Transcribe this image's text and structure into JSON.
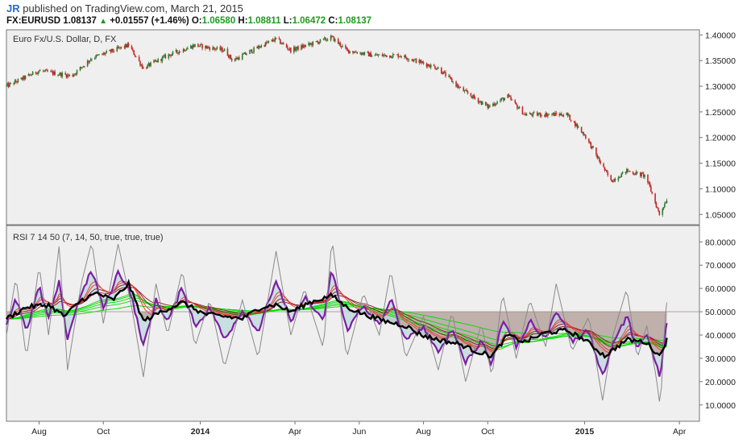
{
  "header": {
    "author": "JR",
    "published": "published on TradingView.com, March 21, 2015",
    "symbol": "FX:EURUSD",
    "last": "1.08137",
    "change": "+0.01557 (+1.46%)",
    "o_label": "O:",
    "o": "1.06580",
    "h_label": "H:",
    "h": "1.08811",
    "l_label": "L:",
    "l": "1.06472",
    "c_label": "C:",
    "c": "1.08137"
  },
  "colors": {
    "pane_bg": "#efefef",
    "up": "#2e7d32",
    "down": "#c62828",
    "rsi_fast": "#8a8a8a",
    "rsi_main": "#000000",
    "rsi_purple": "#7b1fa2",
    "red_ma": "#e53935",
    "green_ma": "#00dd00",
    "fill_light": "#bcd8dc",
    "band_fill": "#b9a8a4"
  },
  "chart_data": [
    {
      "type": "candlestick",
      "title": "Euro Fx/U.S. Dollar, D, FX",
      "ylim": [
        1.03,
        1.41
      ],
      "y_ticks": [
        "1.40000",
        "1.35000",
        "1.30000",
        "1.25000",
        "1.20000",
        "1.15000",
        "1.10000",
        "1.05000"
      ],
      "y_tick_values": [
        1.4,
        1.35,
        1.3,
        1.25,
        1.2,
        1.15,
        1.1,
        1.05
      ],
      "x_tick_labels": [
        "Aug",
        "Oct",
        "2014",
        "Apr",
        "Jun",
        "Aug",
        "Oct",
        "2015",
        "Apr"
      ],
      "close_path": [
        [
          "2013-07-01",
          1.3
        ],
        [
          "2013-08-01",
          1.33
        ],
        [
          "2013-09-01",
          1.32
        ],
        [
          "2013-09-20",
          1.355
        ],
        [
          "2013-10-25",
          1.38
        ],
        [
          "2013-11-08",
          1.335
        ],
        [
          "2013-12-01",
          1.36
        ],
        [
          "2013-12-27",
          1.38
        ],
        [
          "2014-01-24",
          1.37
        ],
        [
          "2014-02-01",
          1.35
        ],
        [
          "2014-03-01",
          1.38
        ],
        [
          "2014-03-14",
          1.392
        ],
        [
          "2014-03-28",
          1.37
        ],
        [
          "2014-05-06",
          1.395
        ],
        [
          "2014-05-20",
          1.37
        ],
        [
          "2014-06-15",
          1.36
        ],
        [
          "2014-07-10",
          1.36
        ],
        [
          "2014-08-15",
          1.335
        ],
        [
          "2014-09-05",
          1.295
        ],
        [
          "2014-10-01",
          1.26
        ],
        [
          "2014-10-20",
          1.28
        ],
        [
          "2014-11-05",
          1.245
        ],
        [
          "2014-12-15",
          1.245
        ],
        [
          "2015-01-01",
          1.205
        ],
        [
          "2015-01-26",
          1.115
        ],
        [
          "2015-02-10",
          1.135
        ],
        [
          "2015-02-28",
          1.125
        ],
        [
          "2015-03-13",
          1.05
        ],
        [
          "2015-03-20",
          1.08
        ]
      ]
    },
    {
      "type": "line",
      "title": "RSI 7 14 50 (7, 14, 50, true, true, true)",
      "ylim": [
        3,
        87
      ],
      "y_ticks": [
        "80.0000",
        "70.0000",
        "60.0000",
        "50.0000",
        "40.0000",
        "30.0000",
        "20.0000",
        "10.0000"
      ],
      "y_tick_values": [
        80,
        70,
        60,
        50,
        40,
        30,
        20,
        10
      ],
      "midline": 50,
      "series": [
        {
          "role": "rsi_main",
          "points": [
            [
              "2013-07-01",
              47
            ],
            [
              "2013-07-20",
              52
            ],
            [
              "2013-08-10",
              53
            ],
            [
              "2013-08-25",
              48
            ],
            [
              "2013-09-10",
              55
            ],
            [
              "2013-09-25",
              58
            ],
            [
              "2013-10-10",
              55
            ],
            [
              "2013-10-25",
              62
            ],
            [
              "2013-11-08",
              46
            ],
            [
              "2013-11-25",
              50
            ],
            [
              "2013-12-15",
              54
            ],
            [
              "2014-01-05",
              49
            ],
            [
              "2014-01-24",
              48
            ],
            [
              "2014-02-10",
              47
            ],
            [
              "2014-02-28",
              52
            ],
            [
              "2014-03-14",
              53
            ],
            [
              "2014-03-28",
              50
            ],
            [
              "2014-04-15",
              54
            ],
            [
              "2014-05-06",
              57
            ],
            [
              "2014-05-20",
              52
            ],
            [
              "2014-06-05",
              49
            ],
            [
              "2014-06-25",
              46
            ],
            [
              "2014-07-15",
              44
            ],
            [
              "2014-07-30",
              40
            ],
            [
              "2014-08-15",
              38
            ],
            [
              "2014-09-05",
              36
            ],
            [
              "2014-09-20",
              33
            ],
            [
              "2014-10-05",
              31
            ],
            [
              "2014-10-20",
              40
            ],
            [
              "2014-11-05",
              37
            ],
            [
              "2014-11-25",
              41
            ],
            [
              "2014-12-15",
              42
            ],
            [
              "2015-01-01",
              38
            ],
            [
              "2015-01-20",
              31
            ],
            [
              "2015-02-10",
              38
            ],
            [
              "2015-02-28",
              37
            ],
            [
              "2015-03-13",
              31
            ],
            [
              "2015-03-20",
              38
            ]
          ]
        },
        {
          "role": "rsi_fast",
          "points": [
            [
              "2013-07-01",
              40
            ],
            [
              "2013-07-10",
              65
            ],
            [
              "2013-07-20",
              30
            ],
            [
              "2013-08-01",
              70
            ],
            [
              "2013-08-10",
              40
            ],
            [
              "2013-08-20",
              78
            ],
            [
              "2013-08-28",
              25
            ],
            [
              "2013-09-10",
              62
            ],
            [
              "2013-09-20",
              80
            ],
            [
              "2013-10-01",
              45
            ],
            [
              "2013-10-15",
              79
            ],
            [
              "2013-10-28",
              52
            ],
            [
              "2013-11-08",
              22
            ],
            [
              "2013-11-20",
              62
            ],
            [
              "2013-12-01",
              40
            ],
            [
              "2013-12-15",
              68
            ],
            [
              "2013-12-27",
              35
            ],
            [
              "2014-01-10",
              55
            ],
            [
              "2014-01-24",
              26
            ],
            [
              "2014-02-10",
              55
            ],
            [
              "2014-02-25",
              30
            ],
            [
              "2014-03-14",
              76
            ],
            [
              "2014-03-28",
              40
            ],
            [
              "2014-04-10",
              60
            ],
            [
              "2014-04-28",
              34
            ],
            [
              "2014-05-06",
              82
            ],
            [
              "2014-05-20",
              30
            ],
            [
              "2014-06-05",
              58
            ],
            [
              "2014-06-20",
              40
            ],
            [
              "2014-07-01",
              68
            ],
            [
              "2014-07-15",
              30
            ],
            [
              "2014-08-01",
              48
            ],
            [
              "2014-08-15",
              25
            ],
            [
              "2014-08-28",
              50
            ],
            [
              "2014-09-10",
              20
            ],
            [
              "2014-09-25",
              45
            ],
            [
              "2014-10-05",
              22
            ],
            [
              "2014-10-15",
              58
            ],
            [
              "2014-10-28",
              30
            ],
            [
              "2014-11-10",
              55
            ],
            [
              "2014-11-25",
              35
            ],
            [
              "2014-12-05",
              62
            ],
            [
              "2014-12-20",
              33
            ],
            [
              "2015-01-05",
              48
            ],
            [
              "2015-01-18",
              12
            ],
            [
              "2015-01-28",
              40
            ],
            [
              "2015-02-10",
              60
            ],
            [
              "2015-02-20",
              30
            ],
            [
              "2015-03-01",
              44
            ],
            [
              "2015-03-10",
              22
            ],
            [
              "2015-03-14",
              8
            ],
            [
              "2015-03-18",
              46
            ],
            [
              "2015-03-20",
              54
            ]
          ]
        }
      ]
    }
  ]
}
